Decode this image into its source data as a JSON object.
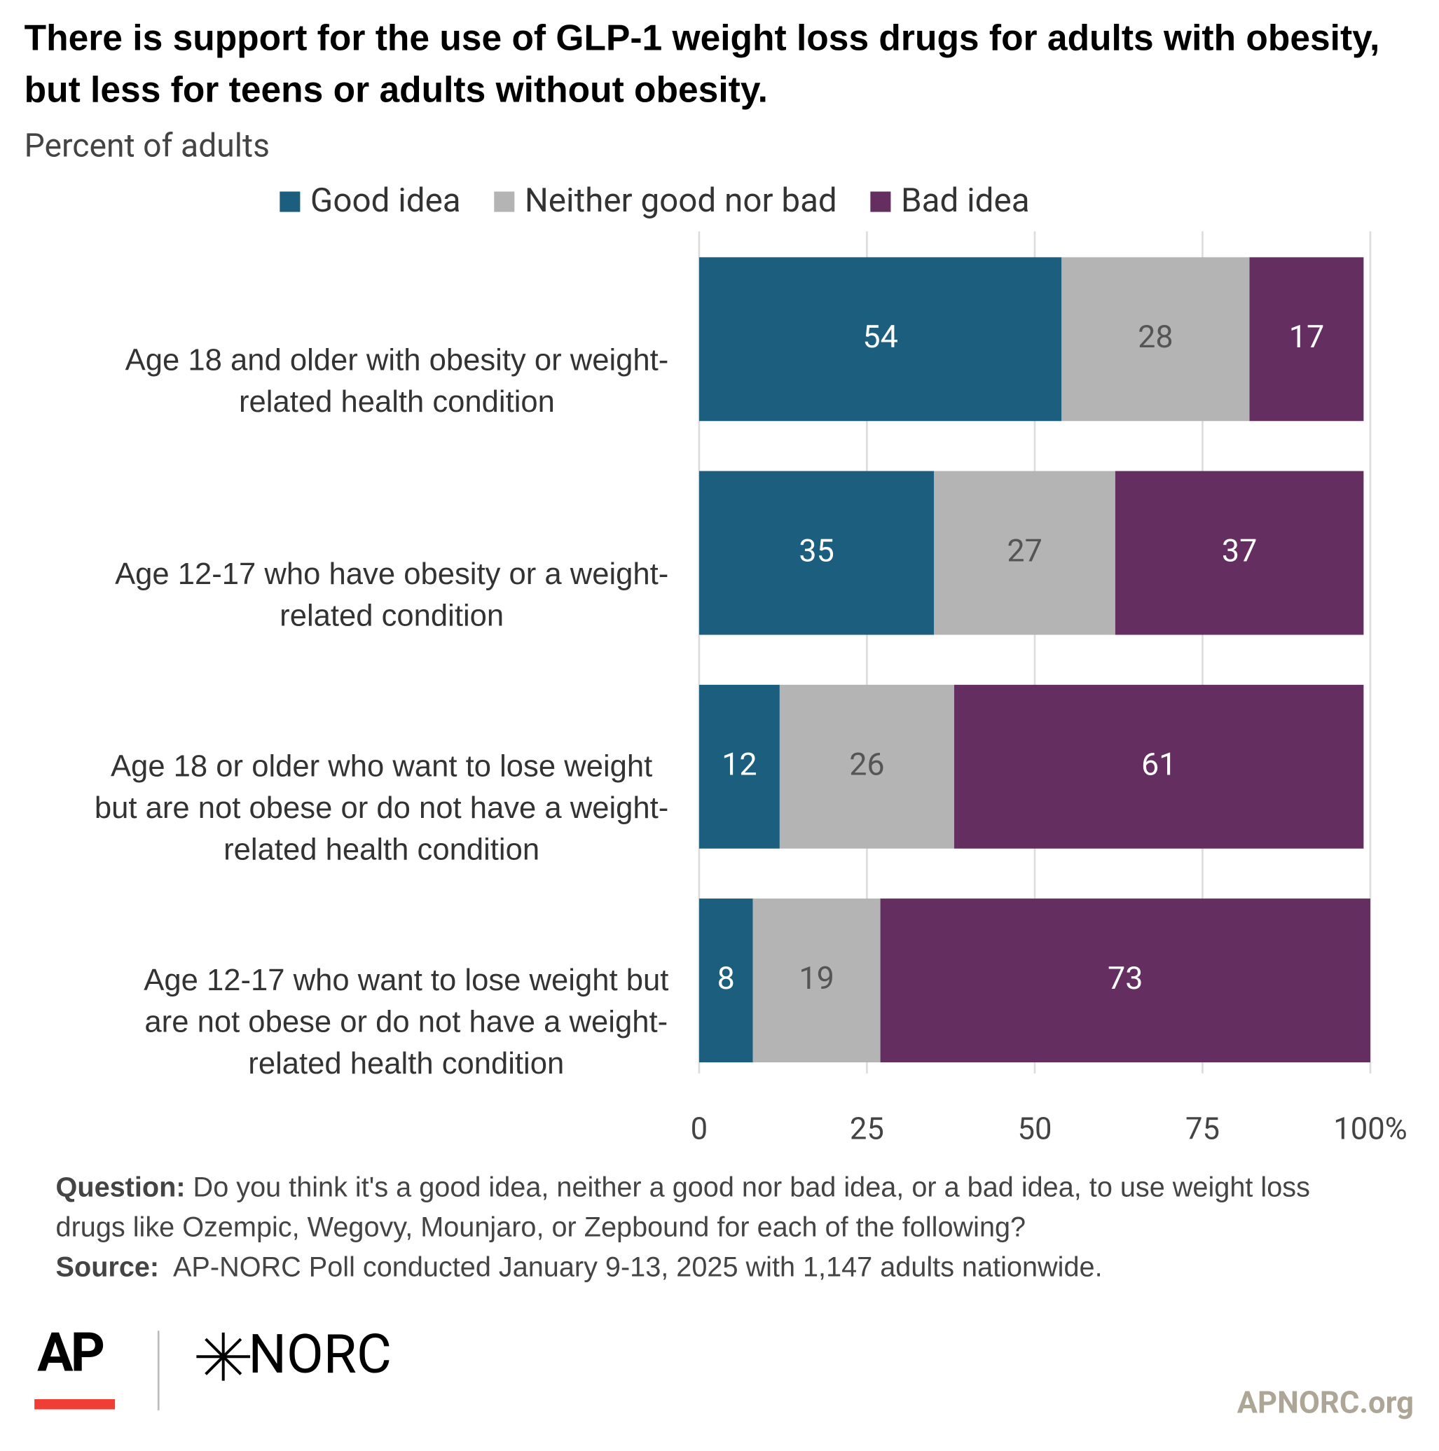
{
  "chart_data": {
    "type": "stacked-bar-horizontal",
    "title": "There is support for the use of GLP-1 weight loss drugs for adults with obesity, but less for teens or adults without obesity.",
    "subtitle": "Percent of adults",
    "categories": [
      "Age 18 and older with obesity or weight-\nrelated health condition",
      "Age 12-17 who have obesity or a weight-\nrelated condition",
      "Age 18 or older who want to lose weight\nbut are not obese or do not have a weight-\nrelated health condition",
      "Age 12-17 who want to lose weight but\nare not obese or do not have a weight-\nrelated health condition"
    ],
    "series": [
      {
        "name": "Good idea",
        "color": "#1b5e7d",
        "values": [
          54,
          35,
          12,
          8
        ]
      },
      {
        "name": "Neither good nor bad",
        "color": "#b4b4b4",
        "values": [
          28,
          27,
          26,
          19
        ]
      },
      {
        "name": "Bad idea",
        "color": "#642f60",
        "values": [
          17,
          37,
          61,
          73
        ]
      }
    ],
    "xlim": [
      0,
      100
    ],
    "xticks": [
      0,
      25,
      50,
      75,
      {
        "value": 100,
        "label": "100%"
      }
    ],
    "grid": true,
    "legend": "top"
  },
  "footer": {
    "question_label": "Question:",
    "question": "Do you think it's a good idea, neither a good nor bad idea, or a bad idea, to use weight loss drugs like Ozempic, Wegovy, Mounjaro, or Zepbound for each of the following?",
    "source_label": "Source:",
    "source": "AP-NORC Poll conducted January 9-13, 2025 with 1,147 adults nationwide."
  },
  "logos": {
    "ap": "AP",
    "norc": "NORC",
    "site": "APNORC.org"
  }
}
